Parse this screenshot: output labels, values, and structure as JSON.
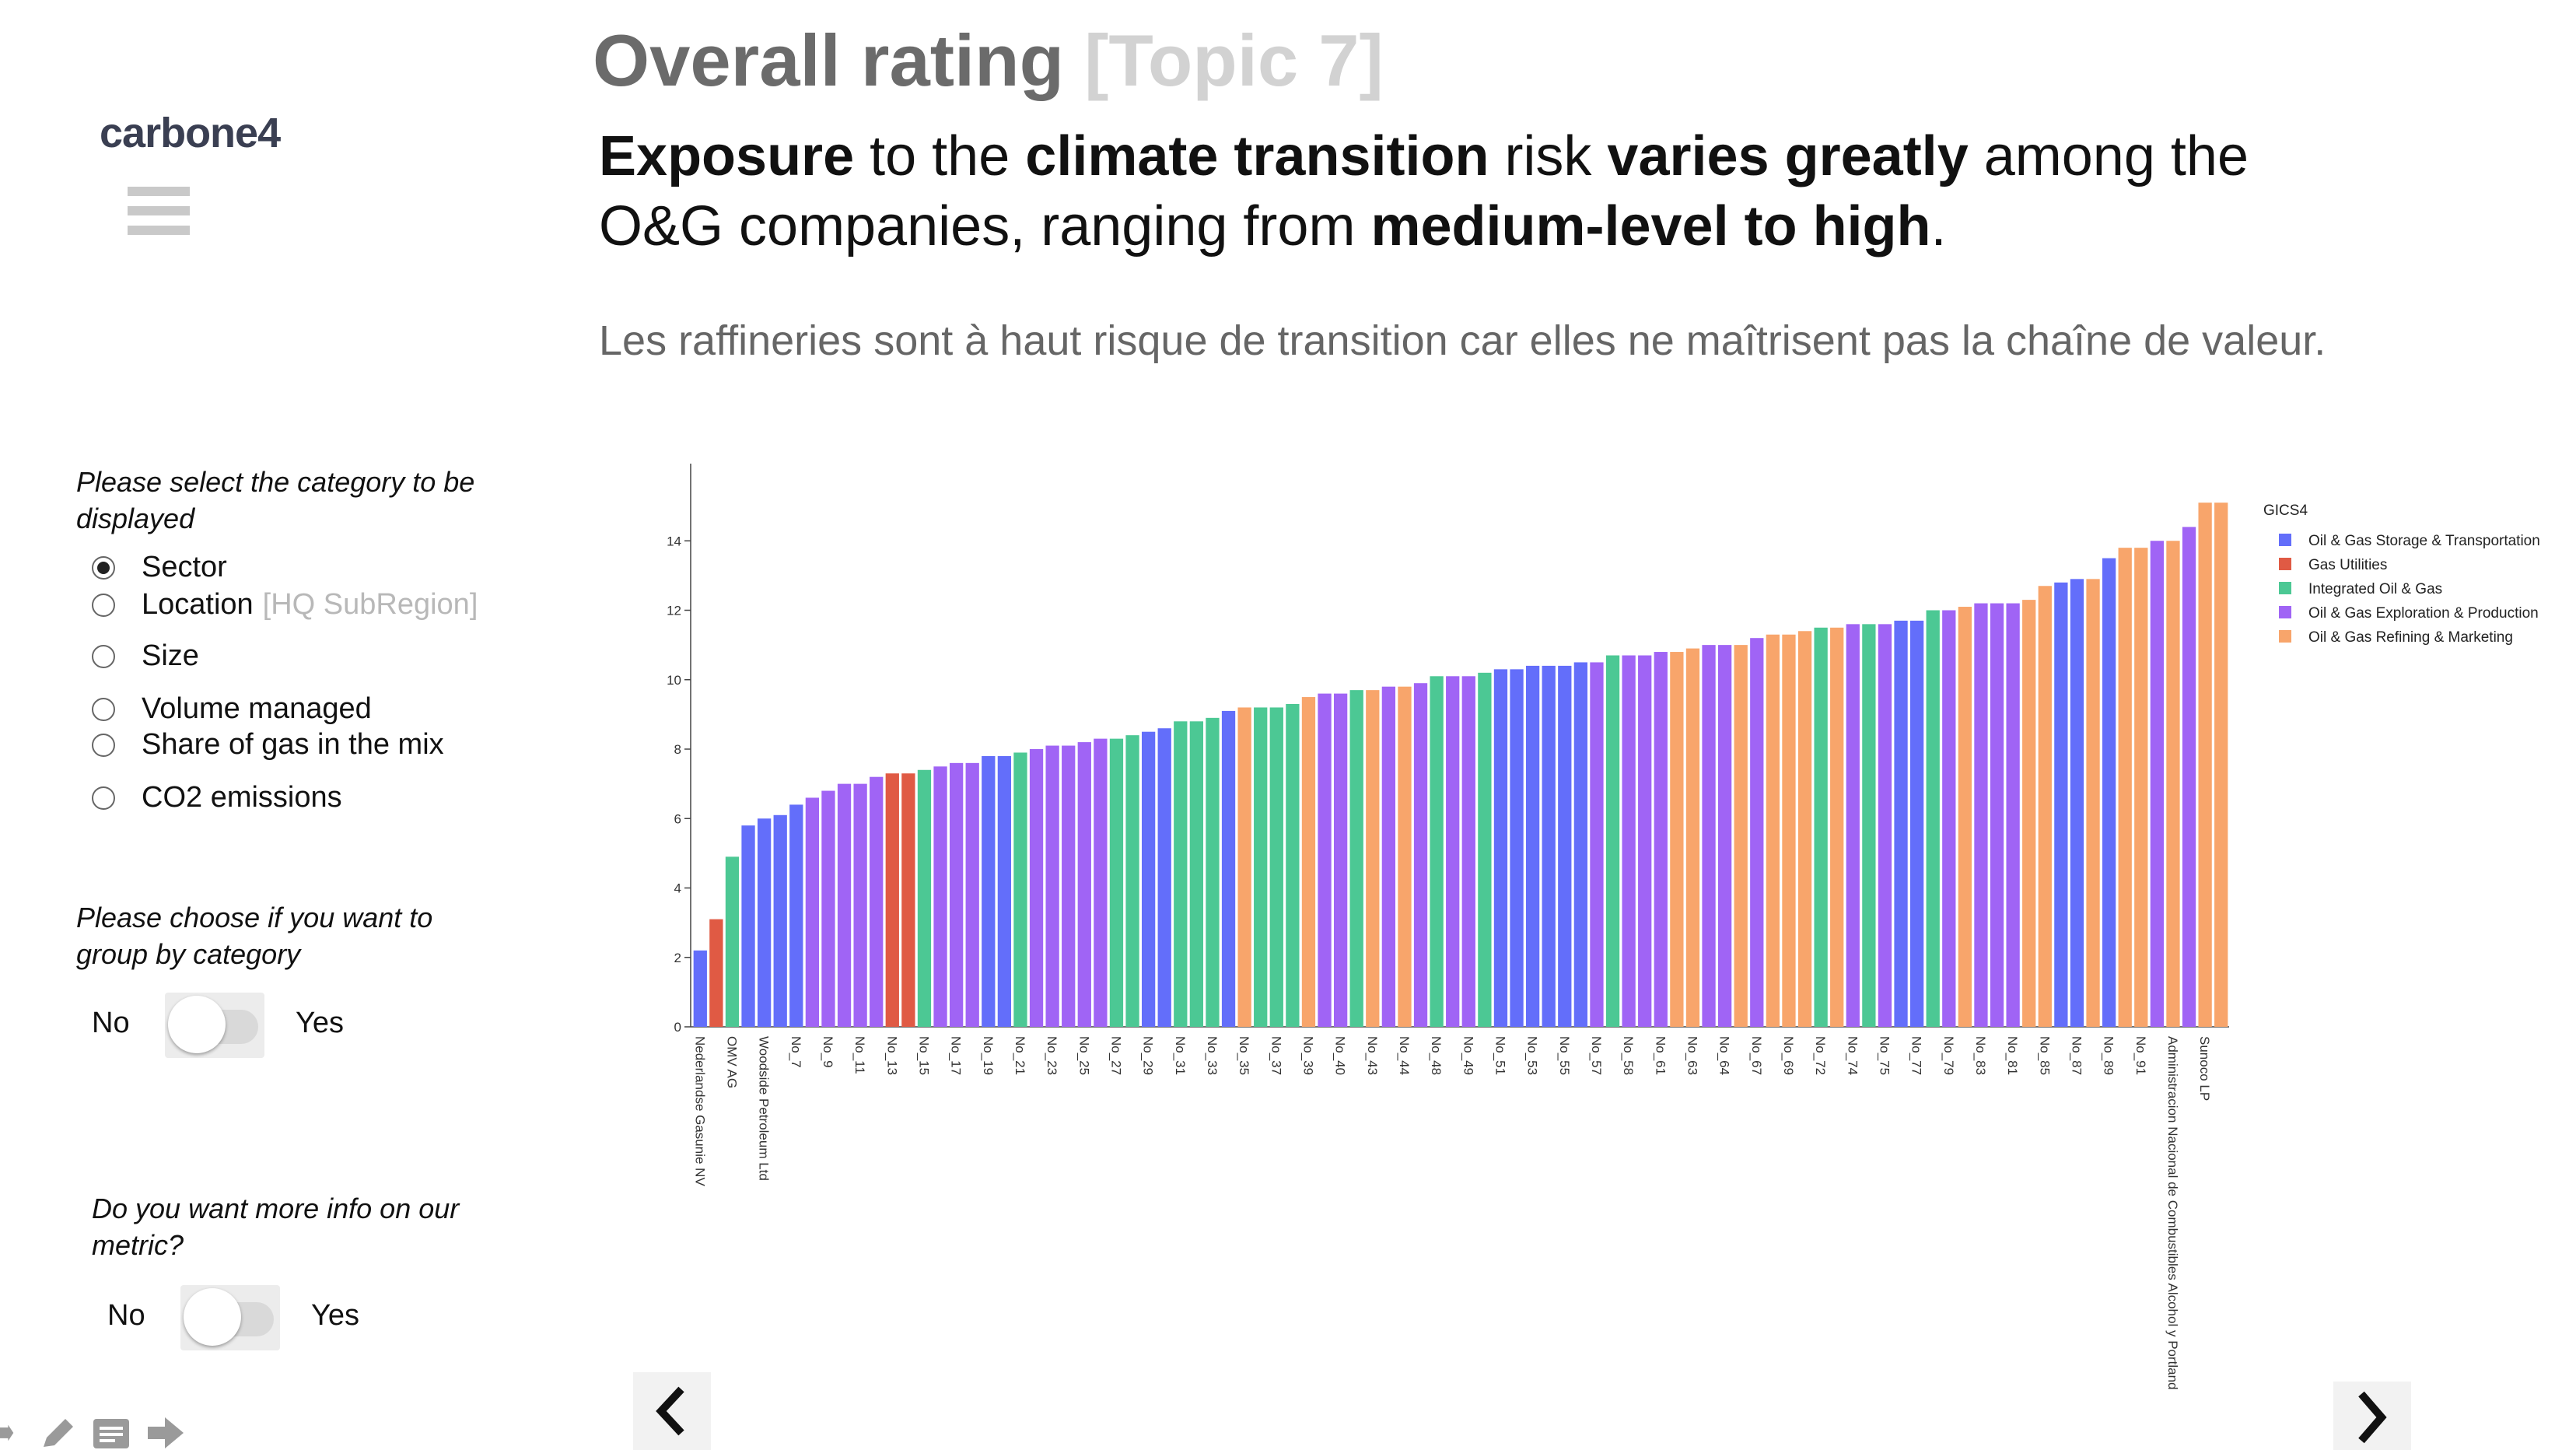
{
  "header": {
    "title": "Overall rating",
    "topic": "[Topic 7]",
    "logo_text": "carbone4",
    "menu_icon": "hamburger-icon"
  },
  "headline": {
    "parts": [
      {
        "text": "Exposure",
        "bold": true
      },
      {
        "text": " to the ",
        "bold": false
      },
      {
        "text": "climate transition",
        "bold": true
      },
      {
        "text": " risk ",
        "bold": false
      },
      {
        "text": "varies greatly",
        "bold": true
      },
      {
        "text": " among the O&G companies, ranging from ",
        "bold": false
      },
      {
        "text": "medium-level to high",
        "bold": true
      },
      {
        "text": ".",
        "bold": false
      }
    ]
  },
  "subtitle": "Les raffineries sont à haut risque de transition car elles ne maîtrisent pas la chaîne de valeur.",
  "category_selector": {
    "question": "Please select the category to be displayed",
    "options": [
      {
        "label": "Sector",
        "hint": "",
        "selected": true
      },
      {
        "label": "Location",
        "hint": "[HQ SubRegion]",
        "selected": false
      },
      {
        "label": "Size",
        "hint": "",
        "selected": false
      },
      {
        "label": "Volume managed",
        "hint": "",
        "selected": false
      },
      {
        "label": "Share of gas in the mix",
        "hint": "",
        "selected": false
      },
      {
        "label": "CO2 emissions",
        "hint": "",
        "selected": false
      }
    ]
  },
  "group_toggle": {
    "question": "Please choose if you want to group by category",
    "no_label": "No",
    "yes_label": "Yes",
    "value": false
  },
  "info_toggle": {
    "question": "Do you want more info on our metric?",
    "no_label": "No",
    "yes_label": "Yes",
    "value": false
  },
  "toolbar": [
    "fullscreen-icon",
    "pen-icon",
    "notes-icon",
    "arrow-right-icon"
  ],
  "nav": {
    "prev_icon": "chevron-left-icon",
    "next_icon": "chevron-right-icon"
  },
  "chart_data": {
    "type": "bar",
    "ylim": [
      0,
      16
    ],
    "yticks": [
      0,
      2,
      4,
      6,
      8,
      10,
      12,
      14
    ],
    "legend_title": "GICS4",
    "legend_position": "top-right",
    "legend": [
      {
        "name": "Oil & Gas Storage & Transportation",
        "color": "#636efa"
      },
      {
        "name": "Gas Utilities",
        "color": "#e05a44"
      },
      {
        "name": "Integrated Oil & Gas",
        "color": "#4cc894"
      },
      {
        "name": "Oil & Gas Exploration & Production",
        "color": "#a064f5"
      },
      {
        "name": "Oil & Gas Refining & Marketing",
        "color": "#f8a56b"
      }
    ],
    "categories": [
      "Nederlandse Gasunie NV",
      "",
      "OMV AG",
      "",
      "Woodside Petroleum Ltd",
      "",
      "No_7",
      "",
      "No_9",
      "",
      "No_11",
      "",
      "No_13",
      "",
      "No_15",
      "",
      "No_17",
      "",
      "No_19",
      "",
      "No_21",
      "",
      "No_23",
      "",
      "No_25",
      "",
      "No_27",
      "",
      "No_29",
      "",
      "No_31",
      "",
      "No_33",
      "",
      "No_35",
      "",
      "No_37",
      "",
      "No_39",
      "",
      "No_40",
      "",
      "No_43",
      "",
      "No_44",
      "",
      "No_48",
      "",
      "No_49",
      "",
      "No_51",
      "",
      "No_53",
      "",
      "No_55",
      "",
      "No_57",
      "",
      "No_58",
      "",
      "No_61",
      "",
      "No_63",
      "",
      "No_64",
      "",
      "No_67",
      "",
      "No_69",
      "",
      "No_72",
      "",
      "No_74",
      "",
      "No_75",
      "",
      "No_77",
      "",
      "No_79",
      "",
      "No_83",
      "",
      "No_81",
      "",
      "No_85",
      "",
      "No_87",
      "",
      "No_89",
      "",
      "No_91",
      "",
      "Administracion Nacional de Combustibles Alcohol y Portland",
      "",
      "Sunoco LP",
      ""
    ],
    "values": [
      2.2,
      3.1,
      4.9,
      5.8,
      6.0,
      6.1,
      6.4,
      6.6,
      6.8,
      7.0,
      7.0,
      7.2,
      7.3,
      7.3,
      7.4,
      7.5,
      7.6,
      7.6,
      7.8,
      7.8,
      7.9,
      8.0,
      8.1,
      8.1,
      8.2,
      8.3,
      8.3,
      8.4,
      8.5,
      8.6,
      8.8,
      8.8,
      8.9,
      9.1,
      9.2,
      9.2,
      9.2,
      9.3,
      9.5,
      9.6,
      9.6,
      9.7,
      9.7,
      9.8,
      9.8,
      9.9,
      10.1,
      10.1,
      10.1,
      10.2,
      10.3,
      10.3,
      10.4,
      10.4,
      10.4,
      10.5,
      10.5,
      10.7,
      10.7,
      10.7,
      10.8,
      10.8,
      10.9,
      11.0,
      11.0,
      11.0,
      11.2,
      11.3,
      11.3,
      11.4,
      11.5,
      11.5,
      11.6,
      11.6,
      11.6,
      11.7,
      11.7,
      12.0,
      12.0,
      12.1,
      12.2,
      12.2,
      12.2,
      12.3,
      12.7,
      12.8,
      12.9,
      12.9,
      13.5,
      13.8,
      13.8,
      14.0,
      14.0,
      14.4,
      15.1,
      15.1
    ],
    "sectors": [
      0,
      1,
      2,
      0,
      0,
      0,
      0,
      3,
      3,
      3,
      3,
      3,
      1,
      1,
      2,
      3,
      3,
      3,
      0,
      0,
      2,
      3,
      3,
      3,
      3,
      3,
      2,
      2,
      0,
      0,
      2,
      2,
      2,
      0,
      4,
      2,
      2,
      2,
      4,
      3,
      3,
      2,
      4,
      3,
      4,
      3,
      2,
      3,
      3,
      2,
      0,
      0,
      0,
      0,
      0,
      0,
      3,
      2,
      3,
      3,
      3,
      4,
      4,
      3,
      3,
      4,
      3,
      4,
      4,
      4,
      2,
      4,
      3,
      2,
      3,
      0,
      0,
      2,
      3,
      4,
      3,
      3,
      3,
      4,
      4,
      0,
      0,
      4,
      0,
      4,
      4,
      3,
      4,
      3,
      4,
      4
    ]
  }
}
